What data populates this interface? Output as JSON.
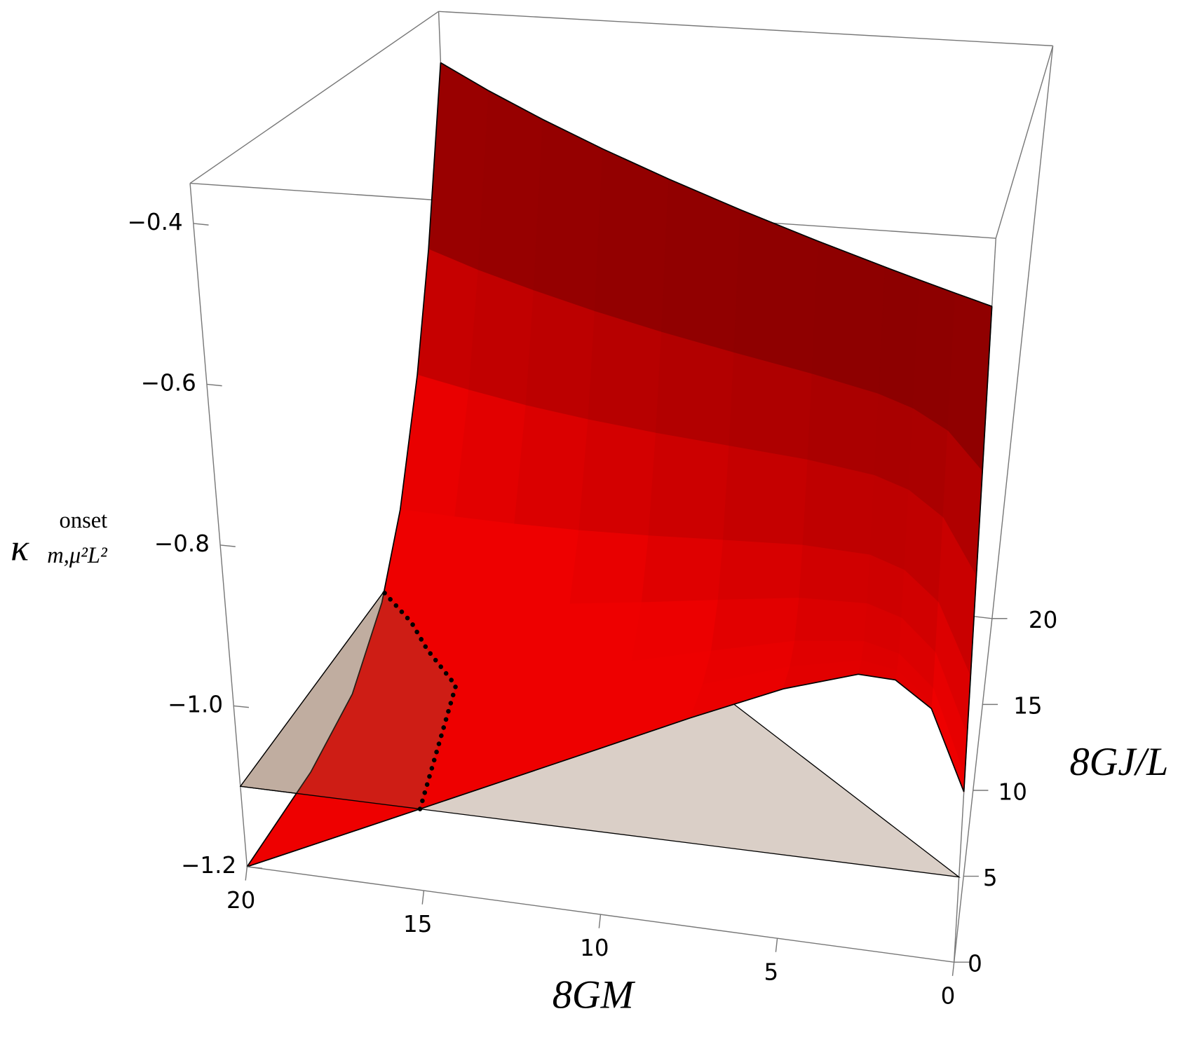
{
  "chart_data": {
    "type": "surface3d",
    "xlabel": "8GM",
    "ylabel": "8GJ/L",
    "zlabel": {
      "base": "κ",
      "sup": "onset",
      "sub": "m,μ²L²"
    },
    "xlim": [
      0,
      20
    ],
    "ylim": [
      0,
      20
    ],
    "zlim": [
      -1.2,
      -0.35
    ],
    "xticks": [
      0,
      5,
      10,
      15,
      20
    ],
    "yticks": [
      0,
      5,
      10,
      15,
      20
    ],
    "zticks": [
      {
        "value": -1.2,
        "label": "−1.2"
      },
      {
        "value": -1.0,
        "label": "−1.0"
      },
      {
        "value": -0.8,
        "label": "−0.8"
      },
      {
        "value": -0.6,
        "label": "−0.6"
      },
      {
        "value": -0.4,
        "label": "−0.4"
      }
    ],
    "surface": {
      "color_low": "#ee0000",
      "color_high": "#7a0000",
      "x": [
        0,
        1,
        2,
        3,
        5,
        7.5,
        10,
        12.5,
        15,
        17.5,
        20
      ],
      "y": [
        [
          0,
          0,
          0,
          0,
          0,
          0,
          0,
          0
        ],
        [
          0,
          0.3,
          0.5,
          0.65,
          0.75,
          0.85,
          0.92,
          1
        ],
        [
          0,
          0.6,
          1,
          1.3,
          1.5,
          1.7,
          1.84,
          2
        ],
        [
          0,
          0.9,
          1.5,
          1.95,
          2.25,
          2.55,
          2.76,
          3
        ],
        [
          0,
          1.5,
          2.5,
          3.25,
          3.75,
          4.25,
          4.6,
          5
        ],
        [
          0,
          2.25,
          3.75,
          4.875,
          5.625,
          6.375,
          6.9,
          7.5
        ],
        [
          0,
          3,
          5,
          6.5,
          7.5,
          8.5,
          9.2,
          10
        ],
        [
          0,
          3.75,
          6.25,
          8.125,
          9.375,
          10.625,
          11.5,
          12.5
        ],
        [
          0,
          4.5,
          7.5,
          9.75,
          11.25,
          12.75,
          13.8,
          15
        ],
        [
          0,
          5.25,
          8.75,
          11.375,
          13.125,
          14.875,
          16.1,
          17.5
        ],
        [
          0,
          6,
          10,
          13,
          15,
          17,
          18.4,
          20
        ]
      ],
      "z": [
        [
          -1.0,
          -0.999,
          -0.982,
          -0.934,
          -0.865,
          -0.747,
          -0.624,
          -0.43
        ],
        [
          -0.907,
          -0.906,
          -0.892,
          -0.852,
          -0.794,
          -0.695,
          -0.593,
          -0.43
        ],
        [
          -0.878,
          -0.877,
          -0.864,
          -0.826,
          -0.772,
          -0.679,
          -0.583,
          -0.43
        ],
        [
          -0.876,
          -0.875,
          -0.862,
          -0.824,
          -0.77,
          -0.678,
          -0.582,
          -0.43
        ],
        [
          -0.903,
          -0.902,
          -0.888,
          -0.848,
          -0.791,
          -0.693,
          -0.591,
          -0.43
        ],
        [
          -0.95,
          -0.949,
          -0.934,
          -0.89,
          -0.827,
          -0.719,
          -0.607,
          -0.43
        ],
        [
          -1.0,
          -0.999,
          -0.982,
          -0.934,
          -0.865,
          -0.747,
          -0.624,
          -0.43
        ],
        [
          -1.05,
          -1.049,
          -1.031,
          -0.978,
          -0.903,
          -0.775,
          -0.641,
          -0.43
        ],
        [
          -1.1,
          -1.098,
          -1.079,
          -1.022,
          -0.941,
          -0.803,
          -0.658,
          -0.43
        ],
        [
          -1.15,
          -1.148,
          -1.128,
          -1.066,
          -0.979,
          -0.83,
          -0.676,
          -0.43
        ],
        [
          -1.2,
          -1.198,
          -1.176,
          -1.111,
          -1.018,
          -0.858,
          -0.693,
          -0.43
        ]
      ]
    },
    "plane": {
      "z": -1.1,
      "color": "#855f44",
      "opacity": 0.3,
      "x": [
        20,
        0,
        20
      ],
      "y": [
        0,
        0,
        20
      ],
      "intersection": {
        "x": [
          15,
          16,
          17.5,
          18.5,
          20
        ],
        "y": [
          0,
          7.9,
          9.94,
          11.5,
          13.2
        ]
      }
    }
  }
}
